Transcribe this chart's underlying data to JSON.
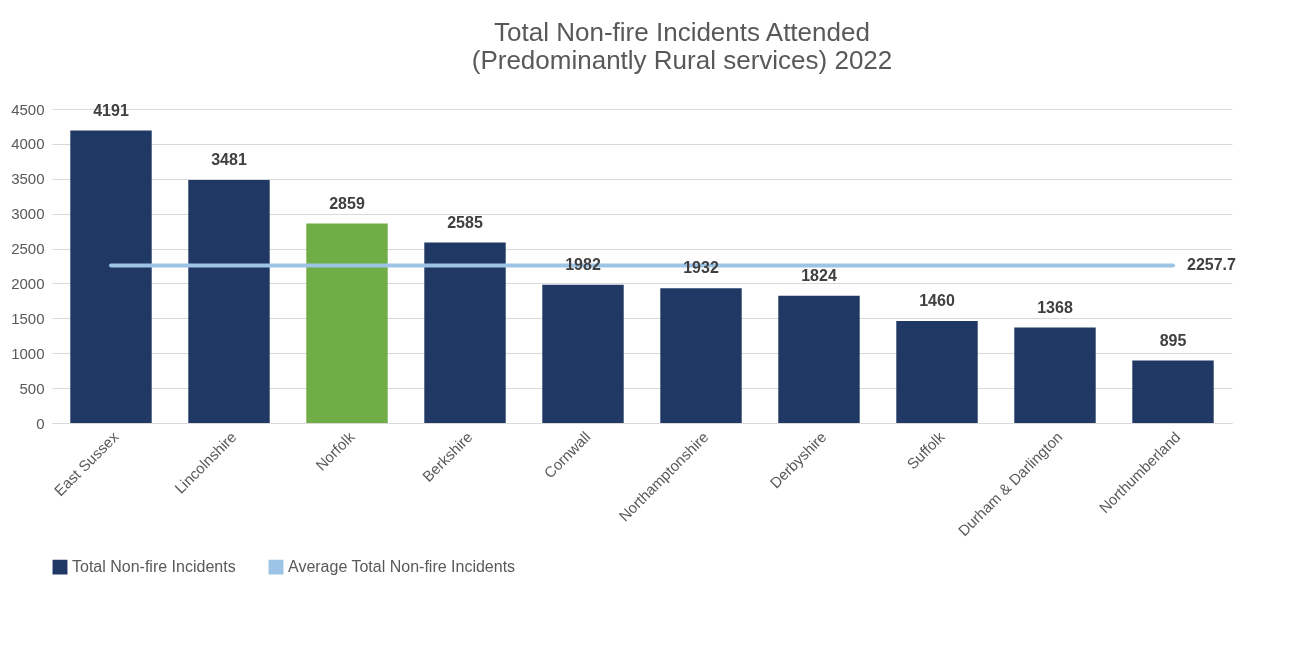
{
  "chart_data": {
    "type": "bar",
    "title": "Total Non-fire Incidents Attended\n(Predominantly Rural services) 2022",
    "categories": [
      "East Sussex",
      "Lincolnshire",
      "Norfolk",
      "Berkshire",
      "Cornwall",
      "Northamptonshire",
      "Derbyshire",
      "Suffolk",
      "Durham & Darlington",
      "Northumberland"
    ],
    "series": [
      {
        "name": "Total Non-fire Incidents",
        "color": "#203864",
        "colors": [
          "#203864",
          "#203864",
          "#70ad47",
          "#203864",
          "#203864",
          "#203864",
          "#203864",
          "#203864",
          "#203864",
          "#203864"
        ],
        "values": [
          4191,
          3481,
          2859,
          2585,
          1982,
          1932,
          1824,
          1460,
          1368,
          895
        ],
        "data_labels": true
      },
      {
        "name": "Average Total Non-fire Incidents",
        "type": "line",
        "color": "#9dc3e6",
        "values": [
          2257.7,
          2257.7,
          2257.7,
          2257.7,
          2257.7,
          2257.7,
          2257.7,
          2257.7,
          2257.7,
          2257.7
        ],
        "value_labels": [
          null,
          null,
          null,
          null,
          null,
          null,
          null,
          null,
          null,
          "2257.7"
        ]
      }
    ],
    "ylim": [
      0,
      4500
    ],
    "yticks": [
      0,
      500,
      1000,
      1500,
      2000,
      2500,
      3000,
      3500,
      4000,
      4500
    ],
    "grid": "y",
    "legend": "bottom"
  }
}
